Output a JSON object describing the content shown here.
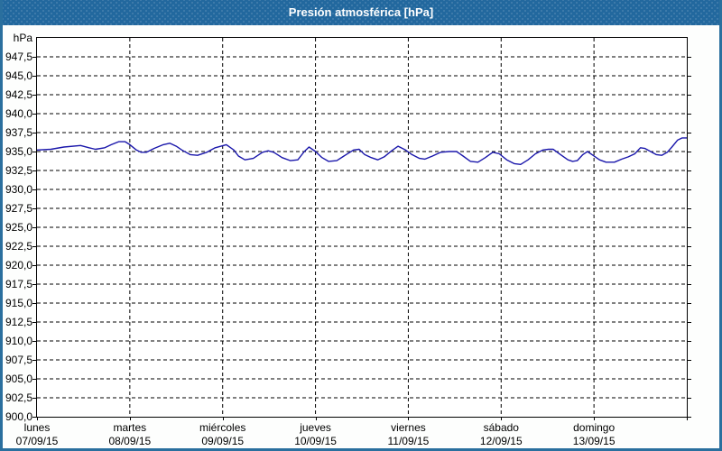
{
  "window": {
    "title": "Presión atmosférica [hPa]"
  },
  "colors": {
    "titlebar_bg": "#22689e",
    "frame_border": "#2a6f9e",
    "title_text": "#ffffff",
    "plot_border": "#000000",
    "grid": "#000000",
    "line": "#1a17ab",
    "label_text": "#000000"
  },
  "chart_data": {
    "type": "line",
    "title": "Presión atmosférica [hPa]",
    "ylabel": "hPa",
    "ylim": [
      900,
      950
    ],
    "ytick_step": 2.5,
    "grid": "dashed",
    "legend": "none",
    "yticks": [
      {
        "value": 947.5,
        "label": "947,5"
      },
      {
        "value": 945.0,
        "label": "945,0"
      },
      {
        "value": 942.5,
        "label": "942,5"
      },
      {
        "value": 940.0,
        "label": "940,0"
      },
      {
        "value": 937.5,
        "label": "937,5"
      },
      {
        "value": 935.0,
        "label": "935,0"
      },
      {
        "value": 932.5,
        "label": "932,5"
      },
      {
        "value": 930.0,
        "label": "930,0"
      },
      {
        "value": 927.5,
        "label": "927,5"
      },
      {
        "value": 925.0,
        "label": "925,0"
      },
      {
        "value": 922.5,
        "label": "922,5"
      },
      {
        "value": 920.0,
        "label": "920,0"
      },
      {
        "value": 917.5,
        "label": "917,5"
      },
      {
        "value": 915.0,
        "label": "915,0"
      },
      {
        "value": 912.5,
        "label": "912,5"
      },
      {
        "value": 910.0,
        "label": "910,0"
      },
      {
        "value": 907.5,
        "label": "907,5"
      },
      {
        "value": 905.0,
        "label": "905,0"
      },
      {
        "value": 902.5,
        "label": "902,5"
      },
      {
        "value": 900.0,
        "label": "900,0"
      }
    ],
    "xlim_days": [
      0,
      7
    ],
    "x_axis_days": [
      {
        "day": "lunes",
        "date": "07/09/15"
      },
      {
        "day": "martes",
        "date": "08/09/15"
      },
      {
        "day": "miércoles",
        "date": "09/09/15"
      },
      {
        "day": "jueves",
        "date": "10/09/15"
      },
      {
        "day": "viernes",
        "date": "11/09/15"
      },
      {
        "day": "sábado",
        "date": "12/09/15"
      },
      {
        "day": "domingo",
        "date": "13/09/15"
      }
    ],
    "series": [
      {
        "name": "presión atmosférica",
        "color": "#1a17ab",
        "points": [
          [
            0.0,
            935.2
          ],
          [
            0.15,
            935.3
          ],
          [
            0.29,
            935.6
          ],
          [
            0.47,
            935.8
          ],
          [
            0.56,
            935.5
          ],
          [
            0.63,
            935.3
          ],
          [
            0.73,
            935.5
          ],
          [
            0.8,
            935.9
          ],
          [
            0.88,
            936.3
          ],
          [
            0.95,
            936.3
          ],
          [
            1.0,
            935.9
          ],
          [
            1.07,
            935.2
          ],
          [
            1.12,
            934.9
          ],
          [
            1.18,
            934.9
          ],
          [
            1.26,
            935.4
          ],
          [
            1.36,
            935.9
          ],
          [
            1.43,
            936.1
          ],
          [
            1.5,
            935.7
          ],
          [
            1.56,
            935.2
          ],
          [
            1.65,
            934.6
          ],
          [
            1.73,
            934.5
          ],
          [
            1.83,
            934.9
          ],
          [
            1.92,
            935.5
          ],
          [
            2.04,
            935.9
          ],
          [
            2.12,
            935.2
          ],
          [
            2.17,
            934.4
          ],
          [
            2.24,
            933.9
          ],
          [
            2.33,
            934.1
          ],
          [
            2.43,
            934.9
          ],
          [
            2.49,
            935.1
          ],
          [
            2.55,
            934.9
          ],
          [
            2.64,
            934.2
          ],
          [
            2.73,
            933.8
          ],
          [
            2.81,
            933.9
          ],
          [
            2.88,
            935.0
          ],
          [
            2.93,
            935.6
          ],
          [
            3.0,
            935.0
          ],
          [
            3.07,
            934.2
          ],
          [
            3.14,
            933.7
          ],
          [
            3.23,
            933.8
          ],
          [
            3.33,
            934.6
          ],
          [
            3.41,
            935.2
          ],
          [
            3.47,
            935.3
          ],
          [
            3.53,
            934.6
          ],
          [
            3.6,
            934.2
          ],
          [
            3.67,
            933.9
          ],
          [
            3.74,
            934.3
          ],
          [
            3.82,
            935.1
          ],
          [
            3.89,
            935.7
          ],
          [
            3.97,
            935.2
          ],
          [
            4.04,
            934.6
          ],
          [
            4.12,
            934.1
          ],
          [
            4.18,
            934.0
          ],
          [
            4.26,
            934.4
          ],
          [
            4.35,
            934.9
          ],
          [
            4.44,
            935.0
          ],
          [
            4.52,
            935.0
          ],
          [
            4.59,
            934.4
          ],
          [
            4.67,
            933.7
          ],
          [
            4.75,
            933.6
          ],
          [
            4.83,
            934.2
          ],
          [
            4.91,
            934.9
          ],
          [
            4.98,
            934.7
          ],
          [
            5.06,
            933.9
          ],
          [
            5.14,
            933.4
          ],
          [
            5.21,
            933.3
          ],
          [
            5.29,
            933.9
          ],
          [
            5.37,
            934.7
          ],
          [
            5.45,
            935.2
          ],
          [
            5.51,
            935.3
          ],
          [
            5.56,
            935.3
          ],
          [
            5.64,
            934.6
          ],
          [
            5.72,
            933.9
          ],
          [
            5.77,
            933.7
          ],
          [
            5.82,
            933.8
          ],
          [
            5.88,
            934.6
          ],
          [
            5.93,
            935.0
          ],
          [
            5.99,
            934.5
          ],
          [
            6.06,
            933.9
          ],
          [
            6.13,
            933.6
          ],
          [
            6.22,
            933.6
          ],
          [
            6.3,
            934.0
          ],
          [
            6.37,
            934.3
          ],
          [
            6.44,
            934.7
          ],
          [
            6.5,
            935.5
          ],
          [
            6.55,
            935.4
          ],
          [
            6.61,
            935.0
          ],
          [
            6.67,
            934.6
          ],
          [
            6.73,
            934.5
          ],
          [
            6.79,
            934.9
          ],
          [
            6.84,
            935.6
          ],
          [
            6.9,
            936.5
          ],
          [
            6.95,
            936.8
          ],
          [
            7.0,
            936.8
          ]
        ]
      }
    ]
  }
}
